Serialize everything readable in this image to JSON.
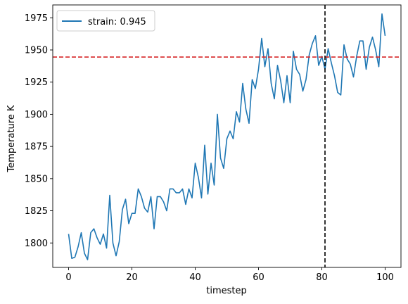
{
  "chart_data": {
    "type": "line",
    "title": "",
    "xlabel": "timestep",
    "ylabel": "Temperature K",
    "xlim": [
      -5,
      105
    ],
    "ylim": [
      1781,
      1985
    ],
    "xticks": [
      0,
      20,
      40,
      60,
      80,
      100
    ],
    "yticks": [
      1800,
      1825,
      1850,
      1875,
      1900,
      1925,
      1950,
      1975
    ],
    "grid": false,
    "legend": {
      "position": "upper-left",
      "entries": [
        "strain: 0.945"
      ]
    },
    "series": [
      {
        "name": "strain: 0.945",
        "color": "#1f77b4",
        "x": [
          0,
          1,
          2,
          3,
          4,
          5,
          6,
          7,
          8,
          9,
          10,
          11,
          12,
          13,
          14,
          15,
          16,
          17,
          18,
          19,
          20,
          21,
          22,
          23,
          24,
          25,
          26,
          27,
          28,
          29,
          30,
          31,
          32,
          33,
          34,
          35,
          36,
          37,
          38,
          39,
          40,
          41,
          42,
          43,
          44,
          45,
          46,
          47,
          48,
          49,
          50,
          51,
          52,
          53,
          54,
          55,
          56,
          57,
          58,
          59,
          60,
          61,
          62,
          63,
          64,
          65,
          66,
          67,
          68,
          69,
          70,
          71,
          72,
          73,
          74,
          75,
          76,
          77,
          78,
          79,
          80,
          81,
          82,
          83,
          84,
          85,
          86,
          87,
          88,
          89,
          90,
          91,
          92,
          93,
          94,
          95,
          96,
          97,
          98,
          99,
          100
        ],
        "y": [
          1807,
          1788,
          1789,
          1797,
          1808,
          1792,
          1787,
          1808,
          1811,
          1804,
          1799,
          1807,
          1796,
          1837,
          1800,
          1790,
          1801,
          1826,
          1834,
          1815,
          1823,
          1823,
          1842,
          1836,
          1827,
          1824,
          1836,
          1811,
          1836,
          1836,
          1832,
          1825,
          1842,
          1842,
          1839,
          1839,
          1842,
          1830,
          1842,
          1835,
          1862,
          1851,
          1835,
          1876,
          1838,
          1862,
          1845,
          1900,
          1866,
          1858,
          1881,
          1887,
          1881,
          1902,
          1894,
          1924,
          1904,
          1893,
          1927,
          1920,
          1935,
          1959,
          1937,
          1951,
          1924,
          1912,
          1938,
          1926,
          1909,
          1930,
          1909,
          1949,
          1935,
          1931,
          1918,
          1927,
          1946,
          1955,
          1961,
          1938,
          1945,
          1935,
          1951,
          1940,
          1930,
          1917,
          1915,
          1954,
          1943,
          1939,
          1929,
          1945,
          1957,
          1957,
          1935,
          1952,
          1960,
          1950,
          1937,
          1978,
          1961
        ]
      }
    ],
    "reference_lines": [
      {
        "orientation": "horizontal",
        "value": 1944.5,
        "color": "#d62728",
        "style": "dashed"
      },
      {
        "orientation": "vertical",
        "value": 81,
        "color": "#000000",
        "style": "dashed"
      }
    ]
  }
}
